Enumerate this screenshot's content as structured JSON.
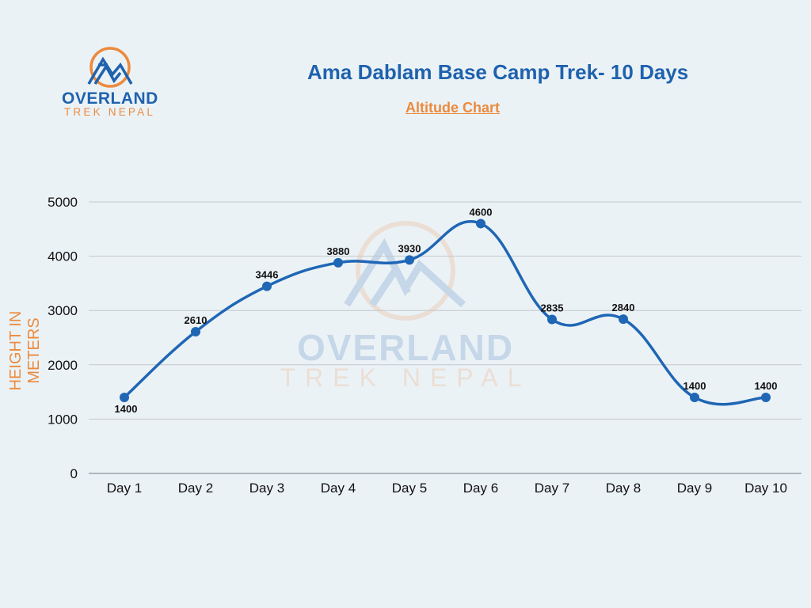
{
  "header": {
    "title": "Ama Dablam Base Camp Trek- 10 Days",
    "subtitle": "Altitude Chart"
  },
  "logo": {
    "line1": "OVERLAND",
    "line2": "TREK NEPAL",
    "icon": "mountain-circle-logo-icon"
  },
  "watermark": {
    "line1": "OVERLAND",
    "line2": "TREK NEPAL"
  },
  "colors": {
    "background": "#ebf2f6",
    "primary_blue": "#1f62ad",
    "accent_orange": "#ec8a3e",
    "line": "#1f66b5"
  },
  "chart_data": {
    "type": "line",
    "title": "Ama Dablam Base Camp Trek- 10 Days",
    "subtitle": "Altitude Chart",
    "xlabel": "",
    "ylabel": "HEIGHT IN METERS",
    "categories": [
      "Day 1",
      "Day 2",
      "Day 3",
      "Day 4",
      "Day 5",
      "Day 6",
      "Day 7",
      "Day 8",
      "Day 9",
      "Day 10"
    ],
    "series": [
      {
        "name": "Altitude",
        "values": [
          1400,
          2610,
          3446,
          3880,
          3930,
          4600,
          2835,
          2840,
          1400,
          1400
        ]
      }
    ],
    "ylim": [
      0,
      5000
    ],
    "yticks": [
      "0",
      "1000",
      "2000",
      "3000",
      "4000",
      "5000"
    ],
    "grid": true,
    "legend": "none",
    "smooth": true,
    "data_labels": [
      "1400",
      "2610",
      "3446",
      "3880",
      "3930",
      "4600",
      "2835",
      "2840",
      "1400",
      "1400"
    ]
  }
}
